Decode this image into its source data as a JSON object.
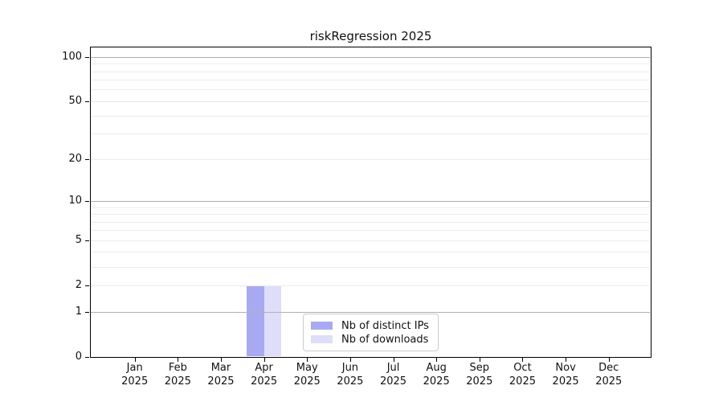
{
  "chart_data": {
    "type": "bar",
    "title": "riskRegression 2025",
    "categories": [
      "Jan",
      "Feb",
      "Mar",
      "Apr",
      "May",
      "Jun",
      "Jul",
      "Aug",
      "Sep",
      "Oct",
      "Nov",
      "Dec"
    ],
    "x_year": "2025",
    "series": [
      {
        "name": "Nb of distinct IPs",
        "color": "#a9a9f2",
        "values": [
          0,
          0,
          0,
          2,
          0,
          0,
          0,
          0,
          0,
          0,
          0,
          0
        ]
      },
      {
        "name": "Nb of downloads",
        "color": "#dedef9",
        "values": [
          0,
          0,
          0,
          2,
          0,
          0,
          0,
          0,
          0,
          0,
          0,
          0
        ]
      }
    ],
    "y_axis": {
      "scale": "log1p",
      "tick_values": [
        0,
        1,
        2,
        5,
        10,
        20,
        50,
        100
      ],
      "major_gridlines": [
        1,
        10,
        100
      ],
      "minor_gridlines": [
        2,
        3,
        4,
        5,
        6,
        7,
        8,
        9,
        20,
        30,
        40,
        50,
        60,
        70,
        80,
        90
      ],
      "range_top_value": 118
    },
    "legend_position": "bottom-center",
    "grid": true
  },
  "colors": {
    "background": "#ffffff",
    "axis_spine": "#000000",
    "major_grid": "#b0b0b0",
    "minor_grid": "#ebebeb",
    "legend_border": "#cccccc",
    "text": "#111111"
  }
}
